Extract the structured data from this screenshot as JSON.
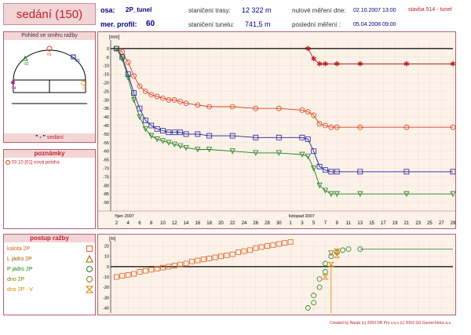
{
  "title": "sedání (150)",
  "header": {
    "osa_label": "osa:",
    "osa_value": "2P_tunel",
    "profil_label": "mer. profil:",
    "profil_value": "60",
    "staniceni_trasy_label": "staničení trasy:",
    "staniceni_trasy_value": "12 322 m",
    "staniceni_tunelu_label": "staničení tunelu:",
    "staniceni_tunelu_value": "741,5 m",
    "nulove_label": "nulové měření dne:",
    "nulove_value": "02.10.2007 13:00",
    "posledni_label": "poslední měření",
    "posledni_colon": ":",
    "posledni_value": "05.04.2008 09:00",
    "stavba": "stavba 514 - tunel"
  },
  "left": {
    "profile_panel_title": "Pohled ve směru ražby",
    "profile_points": [
      "01",
      "02",
      "03",
      "04",
      "05"
    ],
    "profile_caption_prefix": "\" - \"",
    "profile_caption": "sedání",
    "notes_title": "poznámky",
    "notes": [
      "03.10 [01] nová poloha"
    ],
    "progress_title": "postup ražby",
    "progress_legend": [
      {
        "label": "kalota 2P",
        "color": "#e06020",
        "symbol": "square"
      },
      {
        "label": "L jádro 2P",
        "color": "#a06000",
        "symbol": "triangle"
      },
      {
        "label": "P jádro 2P",
        "color": "#208020",
        "symbol": "circle"
      },
      {
        "label": "dno 2P",
        "color": "#808000",
        "symbol": "circle"
      },
      {
        "label": "dno 2P - V",
        "color": "#e08000",
        "symbol": "hourglass"
      }
    ]
  },
  "colors": {
    "red": "#e04020",
    "blue": "#2020a0",
    "green": "#208020",
    "dark_red": "#c02020",
    "orange": "#e08000",
    "olive": "#808000",
    "chart_bg": "#fdf2e8",
    "accent": "#c0202a"
  },
  "chart_data": [
    {
      "type": "line",
      "ylabel": "[mm]",
      "ylim": [
        -95,
        5
      ],
      "yticks": [
        0,
        -5,
        -10,
        -15,
        -20,
        -25,
        -30,
        -35,
        -40,
        -45,
        -50,
        -55,
        -60,
        -65,
        -70,
        -75,
        -80,
        -85,
        -90
      ],
      "x_unit": "day index from 1 Oct 2007",
      "xlim": [
        1,
        60
      ],
      "month_labels": [
        {
          "label": "říjen 2007",
          "day": 2
        },
        {
          "label": "listopad 2007",
          "day": 32
        }
      ],
      "x_tick_days": [
        2,
        4,
        6,
        8,
        10,
        12,
        14,
        16,
        18,
        20,
        22,
        24,
        26,
        28,
        30,
        32,
        34,
        36,
        38,
        40,
        42,
        44,
        46,
        48,
        50,
        52,
        54,
        56,
        58,
        60
      ],
      "x_tick_labels": [
        "2",
        "4",
        "6",
        "8",
        "10",
        "12",
        "14",
        "16",
        "18",
        "20",
        "22",
        "24",
        "26",
        "28",
        "30",
        "1",
        "3",
        "5",
        "7",
        "9",
        "11",
        "13",
        "15",
        "17",
        "19",
        "21",
        "23",
        "25",
        "27",
        "29"
      ],
      "series": [
        {
          "color": "#e04020",
          "marker": "circle",
          "points": [
            [
              2,
              0
            ],
            [
              3,
              -2
            ],
            [
              4,
              -8
            ],
            [
              5,
              -16
            ],
            [
              6,
              -22
            ],
            [
              7,
              -25
            ],
            [
              8,
              -27
            ],
            [
              9,
              -28
            ],
            [
              10,
              -29
            ],
            [
              11,
              -30
            ],
            [
              12,
              -30
            ],
            [
              13,
              -31
            ],
            [
              14,
              -32
            ],
            [
              16,
              -33
            ],
            [
              18,
              -34
            ],
            [
              22,
              -34
            ],
            [
              26,
              -35
            ],
            [
              30,
              -35
            ],
            [
              34,
              -36
            ],
            [
              35,
              -37
            ],
            [
              36,
              -39
            ],
            [
              37,
              -44
            ],
            [
              38,
              -45
            ],
            [
              39,
              -46
            ],
            [
              40,
              -46
            ],
            [
              44,
              -46
            ],
            [
              52,
              -46
            ],
            [
              60,
              -46
            ]
          ]
        },
        {
          "color": "#2020a0",
          "marker": "square",
          "points": [
            [
              2,
              0
            ],
            [
              3,
              -5
            ],
            [
              4,
              -15
            ],
            [
              5,
              -26
            ],
            [
              6,
              -35
            ],
            [
              7,
              -42
            ],
            [
              8,
              -45
            ],
            [
              9,
              -47
            ],
            [
              10,
              -48
            ],
            [
              11,
              -49
            ],
            [
              12,
              -49
            ],
            [
              13,
              -49
            ],
            [
              14,
              -50
            ],
            [
              16,
              -50
            ],
            [
              18,
              -51
            ],
            [
              22,
              -51
            ],
            [
              26,
              -52
            ],
            [
              30,
              -52
            ],
            [
              34,
              -52
            ],
            [
              35,
              -53
            ],
            [
              36,
              -60
            ],
            [
              37,
              -69
            ],
            [
              38,
              -71
            ],
            [
              39,
              -72
            ],
            [
              40,
              -72
            ],
            [
              44,
              -72
            ],
            [
              52,
              -72
            ],
            [
              60,
              -72
            ]
          ]
        },
        {
          "color": "#208020",
          "marker": "triangle",
          "points": [
            [
              2,
              0
            ],
            [
              3,
              -6
            ],
            [
              4,
              -17
            ],
            [
              5,
              -30
            ],
            [
              6,
              -40
            ],
            [
              7,
              -47
            ],
            [
              8,
              -51
            ],
            [
              9,
              -53
            ],
            [
              10,
              -54
            ],
            [
              11,
              -55
            ],
            [
              12,
              -56
            ],
            [
              13,
              -57
            ],
            [
              14,
              -58
            ],
            [
              16,
              -59
            ],
            [
              18,
              -59
            ],
            [
              22,
              -60
            ],
            [
              26,
              -61
            ],
            [
              30,
              -61
            ],
            [
              34,
              -62
            ],
            [
              35,
              -63
            ],
            [
              36,
              -70
            ],
            [
              37,
              -80
            ],
            [
              38,
              -83
            ],
            [
              39,
              -85
            ],
            [
              40,
              -85
            ],
            [
              44,
              -85
            ],
            [
              52,
              -85
            ],
            [
              60,
              -85
            ]
          ]
        },
        {
          "color": "#c02020",
          "marker": "star",
          "points": [
            [
              35,
              0
            ],
            [
              36,
              -6
            ],
            [
              37,
              -9
            ],
            [
              38,
              -9
            ],
            [
              40,
              -9
            ],
            [
              44,
              -9
            ],
            [
              52,
              -9
            ],
            [
              60,
              -9
            ]
          ]
        }
      ]
    },
    {
      "type": "scatter",
      "ylabel": "[m]",
      "ylim": [
        -45,
        25
      ],
      "yticks": [
        20,
        10,
        0,
        -10,
        -20,
        -30,
        -40
      ],
      "xlim": [
        1,
        60
      ],
      "series": [
        {
          "label": "kalota 2P",
          "color": "#e06020",
          "marker": "square",
          "points": [
            [
              2,
              -10
            ],
            [
              3,
              -9
            ],
            [
              4,
              -8
            ],
            [
              5,
              -7
            ],
            [
              6,
              -5
            ],
            [
              7,
              -4
            ],
            [
              8,
              -3
            ],
            [
              9,
              -2
            ],
            [
              10,
              -1
            ],
            [
              11,
              0
            ],
            [
              12,
              1
            ],
            [
              13,
              2
            ],
            [
              14,
              3
            ],
            [
              15,
              5
            ],
            [
              16,
              6
            ],
            [
              17,
              7
            ],
            [
              18,
              8
            ],
            [
              19,
              9
            ],
            [
              20,
              10
            ],
            [
              21,
              11
            ],
            [
              22,
              12
            ],
            [
              23,
              14
            ],
            [
              24,
              15
            ],
            [
              25,
              16
            ],
            [
              26,
              18
            ],
            [
              27,
              19
            ],
            [
              28,
              20
            ],
            [
              29,
              21
            ],
            [
              30,
              22
            ],
            [
              31,
              23
            ],
            [
              32,
              24
            ]
          ]
        },
        {
          "label": "P jádro 2P",
          "color": "#208020",
          "marker": "circle",
          "points": [
            [
              35,
              -40
            ],
            [
              36,
              -35
            ],
            [
              36,
              -28
            ],
            [
              37,
              -20
            ],
            [
              37,
              -12
            ],
            [
              38,
              -5
            ],
            [
              38,
              3
            ],
            [
              39,
              10
            ],
            [
              40,
              14
            ],
            [
              41,
              16
            ],
            [
              42,
              17
            ],
            [
              44,
              17
            ]
          ]
        },
        {
          "label": "L jádro 2P",
          "color": "#a06000",
          "marker": "triangle",
          "points": [
            [
              39,
              13
            ]
          ]
        },
        {
          "label": "dno 2P - V",
          "color": "#e08000",
          "marker": "hourglass",
          "points": [
            [
              38,
              -10
            ],
            [
              39,
              2
            ],
            [
              40,
              11
            ],
            [
              40,
              15
            ]
          ]
        }
      ],
      "lines": [
        {
          "color": "#208020",
          "points": [
            [
              44,
              17
            ],
            [
              60,
              17
            ]
          ]
        },
        {
          "color": "#e08000",
          "points": [
            [
              39,
              2
            ],
            [
              39,
              -45
            ]
          ]
        }
      ]
    }
  ],
  "footer": "Created by Barab (c) 2003 DB Pro v.o.s (c) 2003 SG Geotechnika a.s."
}
